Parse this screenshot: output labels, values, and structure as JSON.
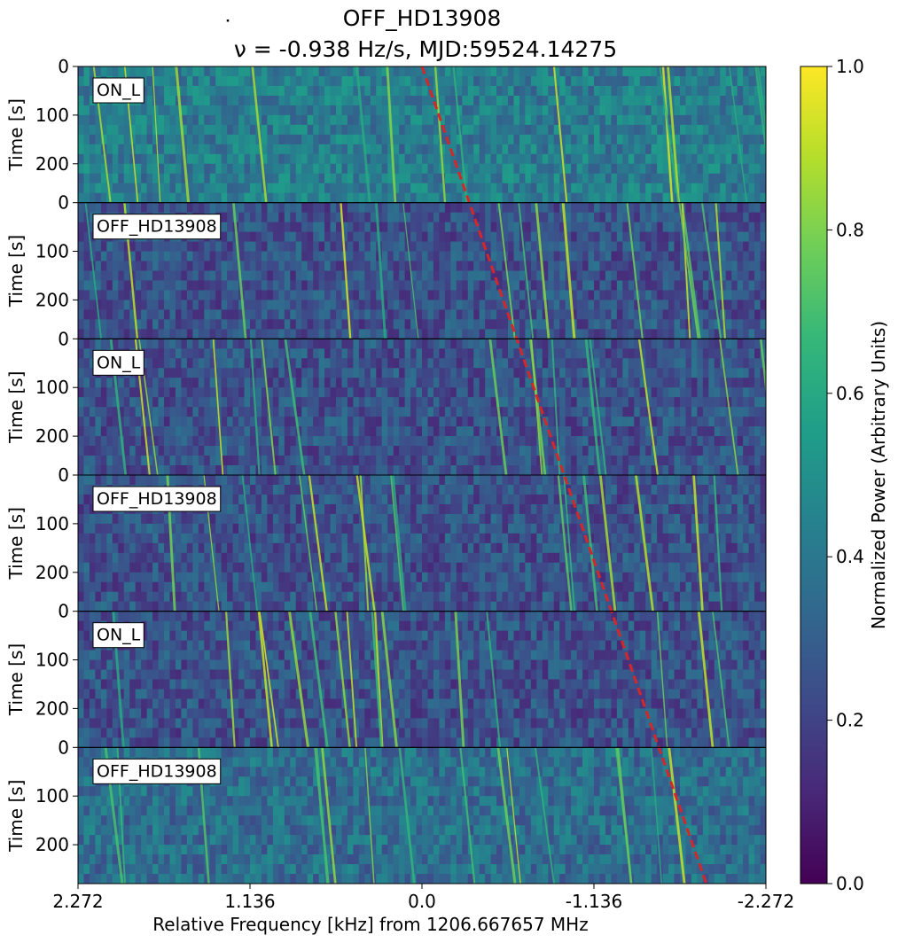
{
  "chart_data": {
    "type": "heatmap",
    "title": "OFF_HD13908",
    "subtitle_prefix": "ν",
    "subtitle_rest": " = -0.938 Hz/s, MJD:59524.14275",
    "xlabel": "Relative Frequency [kHz] from 1206.667657 MHz",
    "ylabel": "Time [s]",
    "colorbar_label": "Normalized Power (Arbitrary Units)",
    "colormap": "viridis",
    "colormap_stops": [
      "#440154",
      "#482878",
      "#3e4a89",
      "#31688e",
      "#26828e",
      "#1f9e89",
      "#35b779",
      "#6ece58",
      "#b5de2b",
      "#fde725"
    ],
    "colorbar_range": [
      0.0,
      1.0
    ],
    "colorbar_ticks": [
      "0.0",
      "0.2",
      "0.4",
      "0.6",
      "0.8",
      "1.0"
    ],
    "colorbar_tick_values": [
      0.0,
      0.2,
      0.4,
      0.6,
      0.8,
      1.0
    ],
    "x_ticks": [
      "2.272",
      "1.136",
      "0.0",
      "-1.136",
      "-2.272"
    ],
    "x_tick_values": [
      2.272,
      1.136,
      0.0,
      -1.136,
      -2.272
    ],
    "xlim": [
      2.272,
      -2.272
    ],
    "y_ticks": [
      "0",
      "100",
      "200"
    ],
    "y_tick_values": [
      0,
      100,
      200
    ],
    "last_panel_y_ticks": [
      "0",
      "100",
      "200"
    ],
    "panel_duration_s": 280,
    "panels": [
      {
        "label": "ON_L"
      },
      {
        "label": "OFF_HD13908"
      },
      {
        "label": "ON_L"
      },
      {
        "label": "OFF_HD13908"
      },
      {
        "label": "ON_L"
      },
      {
        "label": "OFF_HD13908"
      }
    ],
    "drift_line": {
      "color": "#d62728",
      "style": "dashed",
      "start_khz": 0.0,
      "end_khz": -1.878,
      "drift_rate_hz_per_s": -0.938
    },
    "grid": false
  }
}
